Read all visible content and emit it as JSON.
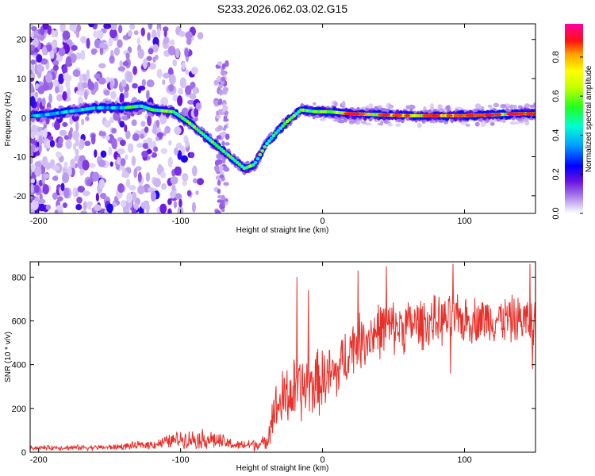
{
  "title": "S233.2026.062.03.02.G15",
  "chart_data": [
    {
      "type": "heatmap",
      "name": "spectrogram",
      "xlabel": "Height of straight line (km)",
      "ylabel": "Frequency (Hz)",
      "xlim": [
        -206,
        150
      ],
      "ylim": [
        -24.5,
        24
      ],
      "xticks": [
        "-200",
        "-100",
        "0",
        "100"
      ],
      "xtick_values": [
        -200,
        -100,
        0,
        100
      ],
      "yticks": [
        "20",
        "10",
        "0",
        "-10",
        "-20"
      ],
      "ytick_values": [
        20,
        10,
        0,
        -10,
        -20
      ],
      "ridge": [
        {
          "x": -200,
          "y": 0.5
        },
        {
          "x": -180,
          "y": 1.5
        },
        {
          "x": -160,
          "y": 2.5
        },
        {
          "x": -140,
          "y": 2.5
        },
        {
          "x": -128,
          "y": 3
        },
        {
          "x": -120,
          "y": 2
        },
        {
          "x": -105,
          "y": 1.5
        },
        {
          "x": -95,
          "y": -1
        },
        {
          "x": -85,
          "y": -4
        },
        {
          "x": -75,
          "y": -7
        },
        {
          "x": -65,
          "y": -10
        },
        {
          "x": -55,
          "y": -13
        },
        {
          "x": -48,
          "y": -12
        },
        {
          "x": -40,
          "y": -7
        },
        {
          "x": -33,
          "y": -4
        },
        {
          "x": -25,
          "y": -1
        },
        {
          "x": -15,
          "y": 2
        },
        {
          "x": -5,
          "y": 1.5
        },
        {
          "x": 5,
          "y": 1.5
        },
        {
          "x": 20,
          "y": 1
        },
        {
          "x": 60,
          "y": 0.5
        },
        {
          "x": 100,
          "y": 0.5
        },
        {
          "x": 140,
          "y": 1
        },
        {
          "x": 150,
          "y": 1
        }
      ],
      "colorbar": {
        "label": "Normalized spectral amplitude",
        "ticks": [
          "0.8",
          "0.6",
          "0.4",
          "0.2",
          "0.0"
        ],
        "tick_values": [
          0.8,
          0.6,
          0.4,
          0.2,
          0.0
        ],
        "range": [
          0,
          0.97
        ]
      }
    },
    {
      "type": "line",
      "name": "snr",
      "xlabel": "Height of straight line (km)",
      "ylabel": "SNR (10 * v/v)",
      "xlim": [
        -206,
        150
      ],
      "ylim": [
        0,
        870
      ],
      "xticks": [
        "-200",
        "-100",
        "0",
        "100"
      ],
      "xtick_values": [
        -200,
        -100,
        0,
        100
      ],
      "yticks": [
        "800",
        "600",
        "400",
        "200",
        "0"
      ],
      "ytick_values": [
        800,
        600,
        400,
        200,
        0
      ],
      "color": "#e8302a",
      "envelope": [
        {
          "x": -206,
          "mean": 20,
          "amp": 12
        },
        {
          "x": -150,
          "mean": 22,
          "amp": 14
        },
        {
          "x": -120,
          "mean": 35,
          "amp": 25
        },
        {
          "x": -100,
          "mean": 60,
          "amp": 45
        },
        {
          "x": -80,
          "mean": 60,
          "amp": 55
        },
        {
          "x": -60,
          "mean": 30,
          "amp": 25
        },
        {
          "x": -40,
          "mean": 40,
          "amp": 40
        },
        {
          "x": -35,
          "mean": 180,
          "amp": 120
        },
        {
          "x": -25,
          "mean": 260,
          "amp": 180
        },
        {
          "x": -10,
          "mean": 300,
          "amp": 180
        },
        {
          "x": 10,
          "mean": 360,
          "amp": 160
        },
        {
          "x": 20,
          "mean": 480,
          "amp": 150
        },
        {
          "x": 40,
          "mean": 560,
          "amp": 150
        },
        {
          "x": 80,
          "mean": 600,
          "amp": 130
        },
        {
          "x": 120,
          "mean": 610,
          "amp": 120
        },
        {
          "x": 150,
          "mean": 600,
          "amp": 130
        }
      ],
      "spikes": [
        {
          "x": -18,
          "y": 800
        },
        {
          "x": -10,
          "y": 740
        },
        {
          "x": 25,
          "y": 830
        },
        {
          "x": 45,
          "y": 850
        },
        {
          "x": 92,
          "y": 860
        },
        {
          "x": 146,
          "y": 860
        },
        {
          "x": 90,
          "y": 360
        },
        {
          "x": 148,
          "y": 380
        }
      ]
    }
  ]
}
